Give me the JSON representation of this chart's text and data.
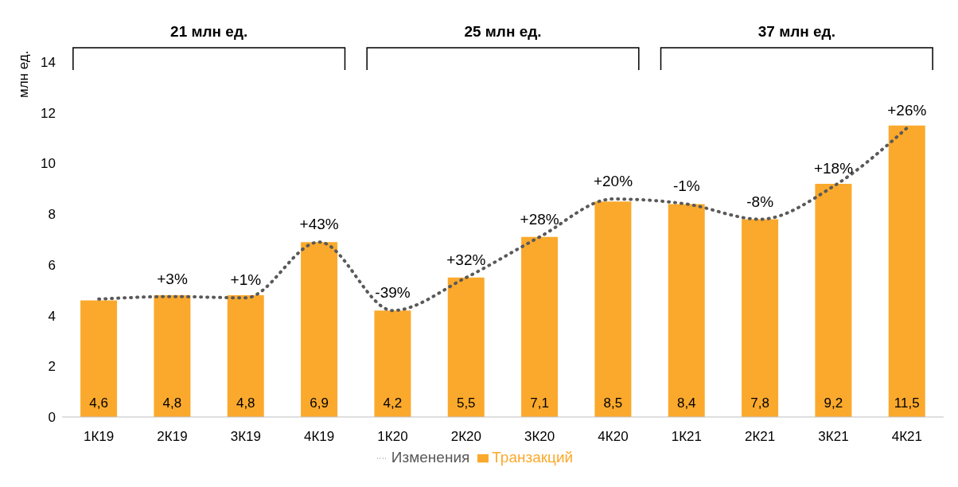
{
  "chart_data": {
    "type": "bar",
    "ylabel": "млн ед.",
    "categories": [
      "1К19",
      "2К19",
      "3К19",
      "4К19",
      "1К20",
      "2К20",
      "3К20",
      "4К20",
      "1К21",
      "2К21",
      "3К21",
      "4К21"
    ],
    "series": [
      {
        "name": "Транзакций",
        "color": "#fba92c",
        "values": [
          4.6,
          4.8,
          4.8,
          6.9,
          4.2,
          5.5,
          7.1,
          8.5,
          8.4,
          7.8,
          9.2,
          11.5
        ],
        "value_labels": [
          "4,6",
          "4,8",
          "4,8",
          "6,9",
          "4,2",
          "5,5",
          "7,1",
          "8,5",
          "8,4",
          "7,8",
          "9,2",
          "11,5"
        ]
      },
      {
        "name": "Изменения",
        "type": "line",
        "color": "#595959",
        "line_style": "dotted",
        "values": [
          4.65,
          4.75,
          4.7,
          6.9,
          4.2,
          5.5,
          7.1,
          8.6,
          8.4,
          7.8,
          9.1,
          11.4
        ]
      }
    ],
    "ylim": [
      0,
      14
    ],
    "yticks": [
      0,
      2,
      4,
      6,
      8,
      10,
      12,
      14
    ],
    "grid": false,
    "legend": "bottom",
    "marker": "none",
    "annotations": [
      "21 млн ед.",
      "25 млн ед.",
      "37 млн ед.",
      {
        "text": "+3%",
        "x": "2К19",
        "y": 4.75
      },
      {
        "text": "+1%",
        "x": "3К19",
        "y": 4.7
      },
      {
        "text": "+43%",
        "x": "4К19",
        "y": 6.9
      },
      {
        "text": "-39%",
        "x": "1К20",
        "y": 4.2
      },
      {
        "text": "+32%",
        "x": "2К20",
        "y": 5.5
      },
      {
        "text": "+28%",
        "x": "3К20",
        "y": 7.1
      },
      {
        "text": "+20%",
        "x": "4К20",
        "y": 8.6
      },
      {
        "text": "-1%",
        "x": "1К21",
        "y": 8.4
      },
      {
        "text": "-8%",
        "x": "2К21",
        "y": 7.8
      },
      {
        "text": "+18%",
        "x": "3К21",
        "y": 9.1
      },
      {
        "text": "+26%",
        "x": "4К21",
        "y": 11.4
      }
    ]
  }
}
